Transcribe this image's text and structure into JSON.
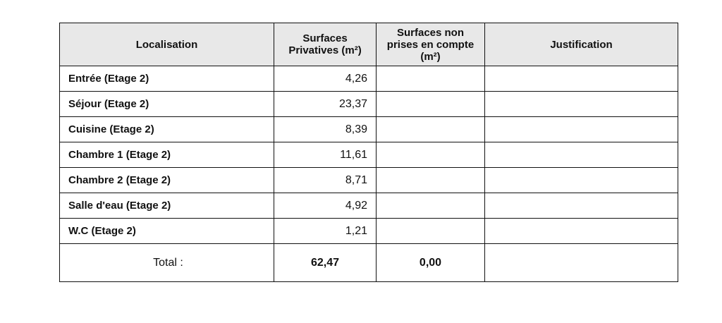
{
  "table": {
    "headers": [
      "Localisation",
      "Surfaces Privatives (m²)",
      "Surfaces non prises en compte (m²)",
      "Justification"
    ],
    "rows": [
      [
        "Entrée (Etage 2)",
        "4,26"
      ],
      [
        "Séjour (Etage 2)",
        "23,37"
      ],
      [
        "Cuisine (Etage 2)",
        "8,39"
      ],
      [
        "Chambre 1 (Etage 2)",
        "11,61"
      ],
      [
        "Chambre 2 (Etage 2)",
        "8,71"
      ],
      [
        "Salle d'eau (Etage 2)",
        "4,92"
      ],
      [
        "W.C (Etage 2)",
        "1,21"
      ]
    ],
    "total": {
      "label": "Total :",
      "privatives": "62,47",
      "non_prises": "0,00"
    }
  }
}
